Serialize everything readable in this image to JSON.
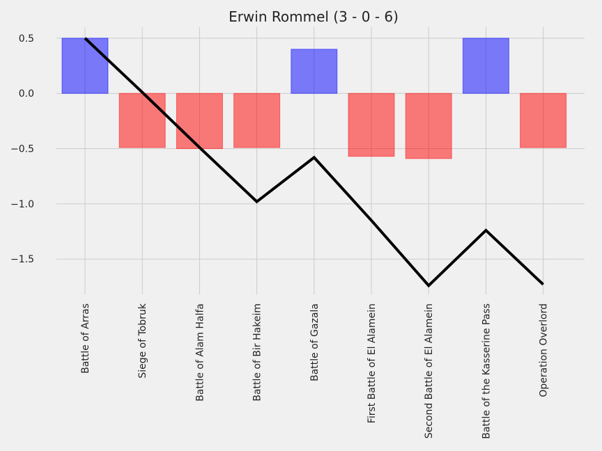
{
  "chart_data": {
    "type": "bar",
    "title": "Erwin Rommel (3 - 0 - 6)",
    "xlabel": "",
    "ylabel": "",
    "categories": [
      "Battle of Arras",
      "Siege of Tobruk",
      "Battle of Alam Halfa",
      "Battle of Bir Hakeim",
      "Battle of Gazala",
      "First Battle of El Alamein",
      "Second Battle of El Alamein",
      "Battle of the Kasserine Pass",
      "Operation Overlord"
    ],
    "series": [
      {
        "type": "bar",
        "values": [
          0.5,
          -0.49,
          -0.5,
          -0.49,
          0.4,
          -0.57,
          -0.59,
          0.5,
          -0.49
        ]
      },
      {
        "type": "line",
        "values": [
          0.5,
          0.01,
          -0.49,
          -0.98,
          -0.58,
          -1.15,
          -1.74,
          -1.24,
          -1.73
        ]
      }
    ],
    "yticks": [
      0.5,
      0.0,
      -0.5,
      -1.0,
      -1.5
    ],
    "ytick_labels": [
      "0.5",
      "0.0",
      "−0.5",
      "−1.0",
      "−1.5"
    ],
    "ylim": [
      -1.82,
      0.6
    ],
    "grid": true,
    "colors": {
      "positive": "#0000ff",
      "negative": "#ff0000",
      "line": "#000000",
      "background": "#f0f0f0",
      "grid": "#cbcbcb"
    }
  }
}
